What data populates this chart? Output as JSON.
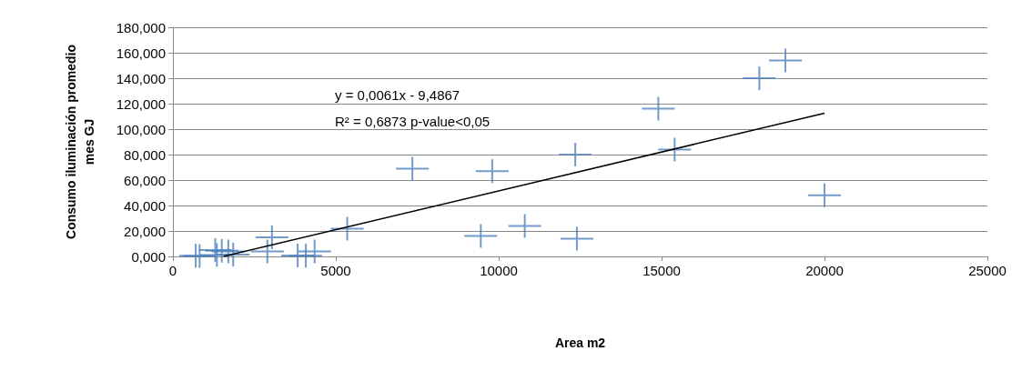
{
  "chart_data": {
    "type": "scatter",
    "xlabel": "Area m2",
    "ylabel": "Consumo iluminación promedio mes GJ",
    "annotations": [
      "y = 0,0061x - 9,4867",
      "R² = 0,6873 p-value<0,05"
    ],
    "xlim": [
      0,
      25000
    ],
    "xticks": [
      0,
      5000,
      10000,
      15000,
      20000,
      25000
    ],
    "ylim": [
      0,
      180
    ],
    "yticks": [
      {
        "value": 0,
        "label": "0,000"
      },
      {
        "value": 20,
        "label": "20,000"
      },
      {
        "value": 40,
        "label": "40,000"
      },
      {
        "value": 60,
        "label": "60,000"
      },
      {
        "value": 80,
        "label": "80,000"
      },
      {
        "value": 100,
        "label": "100,000"
      },
      {
        "value": 120,
        "label": "120,000"
      },
      {
        "value": 140,
        "label": "140,000"
      },
      {
        "value": 160,
        "label": "160,000"
      },
      {
        "value": 180,
        "label": "180,000"
      }
    ],
    "grid": "y",
    "marker": "cross",
    "series": [
      {
        "color": "#4f81bd",
        "x": [
          700,
          820,
          1300,
          1350,
          1500,
          1700,
          1850,
          2900,
          3040,
          3830,
          4080,
          4350,
          5350,
          7350,
          9450,
          9800,
          10800,
          12350,
          12400,
          14900,
          15400,
          18000,
          18800,
          20000
        ],
        "values": [
          0.5,
          0.3,
          5,
          1,
          4.5,
          4,
          1.5,
          4,
          15,
          0.7,
          0.5,
          4,
          21.7,
          69,
          16,
          67,
          24,
          80,
          14,
          116,
          84,
          140,
          154,
          48
        ]
      },
      {
        "type": "line",
        "marker": "none",
        "color": "#000000",
        "x": [
          1555,
          20000
        ],
        "values": [
          0,
          112.5
        ]
      }
    ]
  }
}
